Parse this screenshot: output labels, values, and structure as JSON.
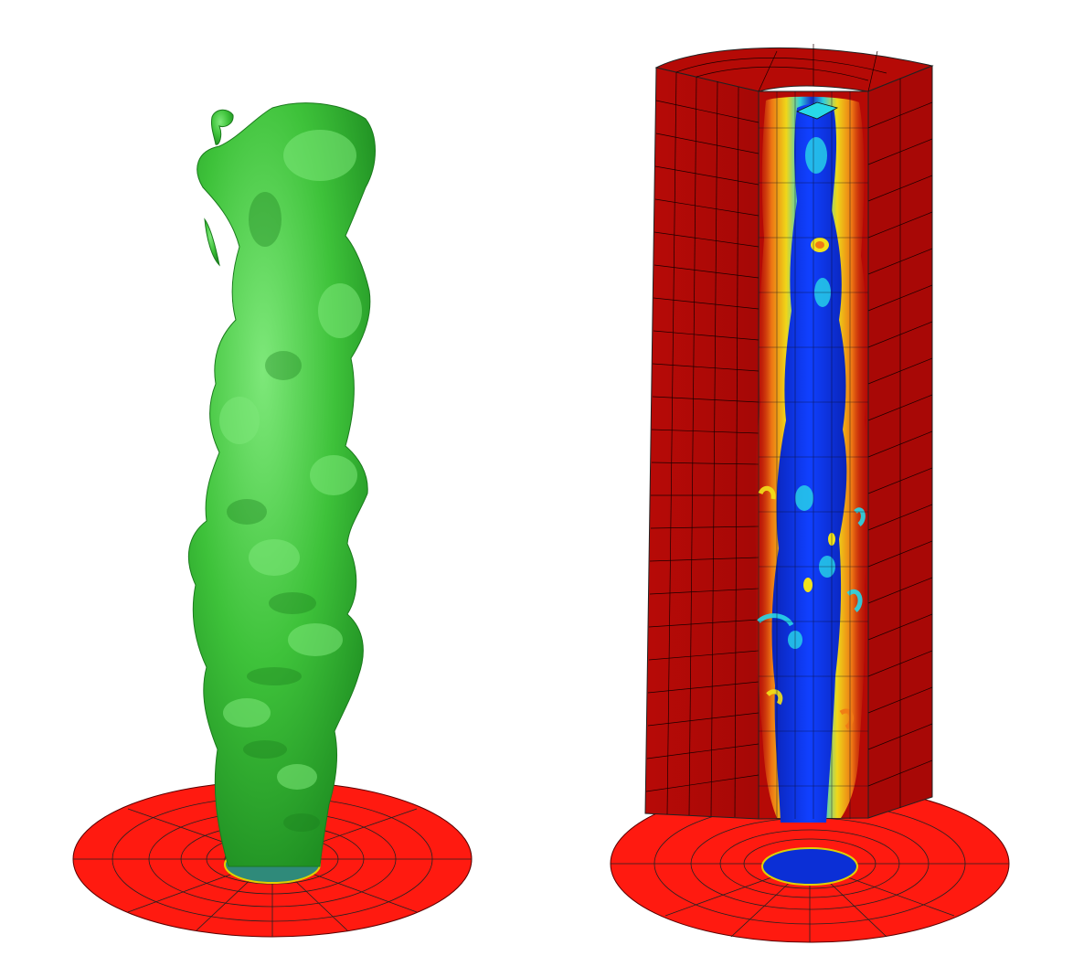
{
  "figure": {
    "panels": [
      {
        "name": "isosurface-plume",
        "surface_color": "#3ec23a",
        "base_disk_color": "#ff1a10",
        "inlet_color": "#2f8a7a"
      },
      {
        "name": "cutaway-mesh-contour",
        "block_color": "#b50a06",
        "base_disk_color": "#ff1a10",
        "core_color": "#0b2fd6"
      }
    ],
    "colors": {
      "green_light": "#6fe06a",
      "green_mid": "#3ec23a",
      "green_dark": "#1f8f22",
      "red_bright": "#ff1a10",
      "red_dark": "#b50a06",
      "blue_deep": "#0b2fd6",
      "cyan": "#28d8e8",
      "yellow": "#f2e21a",
      "orange": "#f07a14"
    }
  }
}
